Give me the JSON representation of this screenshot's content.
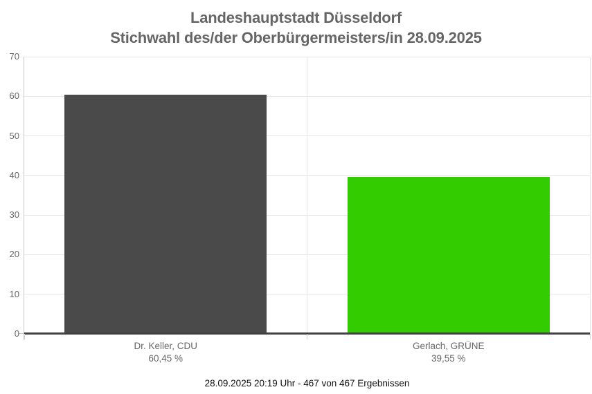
{
  "chart_data": {
    "type": "bar",
    "title": "Landeshauptstadt Düsseldorf",
    "subtitle": "Stichwahl des/der Oberbürgermeisters/in 28.09.2025",
    "categories": [
      "Dr. Keller, CDU",
      "Gerlach, GRÜNE"
    ],
    "values": [
      60.45,
      39.55
    ],
    "value_labels": [
      "60,45 %",
      "39,55 %"
    ],
    "bar_names": [
      "bar-keller-cdu",
      "bar-gerlach-gruene"
    ],
    "colors": [
      "#4a4a4a",
      "#33cc00"
    ],
    "yticks": [
      0,
      10,
      20,
      30,
      40,
      50,
      60,
      70
    ],
    "ylim": [
      0,
      70
    ],
    "xlabel": "",
    "ylabel": "",
    "grid": true,
    "legend": "none",
    "footer": "28.09.2025 20:19 Uhr - 467 von 467 Ergebnissen"
  },
  "style_colors": {
    "title_text": "#666666",
    "axis_text": "#666666",
    "gridline": "#e6e6e6",
    "axis_line": "#c8c8c8",
    "baseline": "#424242",
    "footer_text": "#111111",
    "background": "#ffffff"
  }
}
